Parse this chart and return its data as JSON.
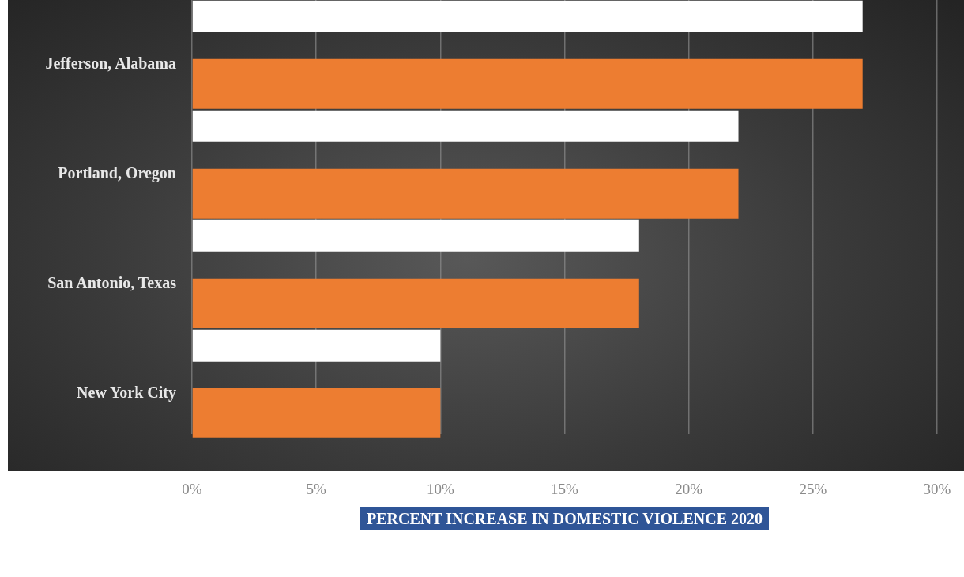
{
  "chart_data": {
    "type": "bar",
    "orientation": "horizontal",
    "categories": [
      "Jefferson, Alabama",
      "Portland, Oregon",
      "San Antonio, Texas",
      "New York City"
    ],
    "series": [
      {
        "color": "#ffffff",
        "values": [
          27,
          22,
          18,
          10
        ]
      },
      {
        "color": "#ed7d31",
        "values": [
          27,
          22,
          18,
          10
        ]
      }
    ],
    "xlabel": "PERCENT INCREASE IN DOMESTIC VIOLENCE 2020",
    "xlim": [
      0,
      30
    ],
    "xticks": [
      {
        "value": 0,
        "label": "0%"
      },
      {
        "value": 5,
        "label": "5%"
      },
      {
        "value": 10,
        "label": "10%"
      },
      {
        "value": 15,
        "label": "15%"
      },
      {
        "value": 20,
        "label": "20%"
      },
      {
        "value": 25,
        "label": "25%"
      },
      {
        "value": 30,
        "label": "30%"
      }
    ],
    "grid": "x"
  }
}
